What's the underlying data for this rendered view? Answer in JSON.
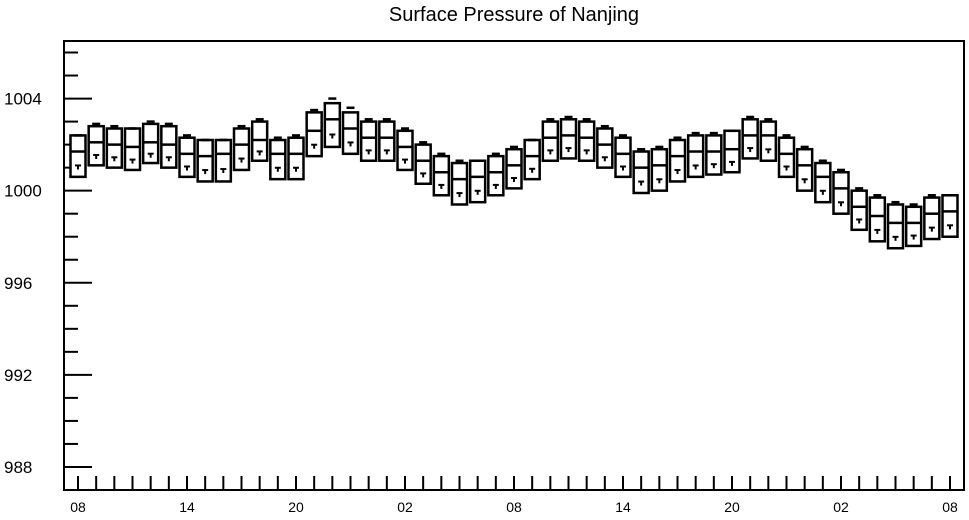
{
  "chart_data": {
    "type": "box",
    "title": "Surface Pressure of Nanjing",
    "xlabel": "",
    "ylabel": "",
    "ylim": [
      987.0,
      1006.5
    ],
    "y_ticks": [
      988,
      992,
      996,
      1000,
      1004
    ],
    "x_tick_labels": [
      "08",
      "14",
      "20",
      "02",
      "08",
      "14",
      "20",
      "02",
      "08"
    ],
    "x_tick_positions": [
      0,
      6,
      12,
      18,
      24,
      30,
      36,
      42,
      48
    ],
    "grid": false,
    "boxes": [
      {
        "x": 0,
        "low": 1000.6,
        "q1": 1000.6,
        "median": 1001.7,
        "q3": 1002.4,
        "high": 1002.4
      },
      {
        "x": 1,
        "low": 1001.1,
        "q1": 1001.1,
        "median": 1002.1,
        "q3": 1002.8,
        "high": 1002.9
      },
      {
        "x": 2,
        "low": 1001.0,
        "q1": 1001.0,
        "median": 1002.0,
        "q3": 1002.7,
        "high": 1002.8
      },
      {
        "x": 3,
        "low": 1000.9,
        "q1": 1000.9,
        "median": 1001.9,
        "q3": 1002.7,
        "high": 1002.7
      },
      {
        "x": 4,
        "low": 1001.2,
        "q1": 1001.2,
        "median": 1002.1,
        "q3": 1002.9,
        "high": 1003.0
      },
      {
        "x": 5,
        "low": 1001.0,
        "q1": 1001.0,
        "median": 1002.0,
        "q3": 1002.8,
        "high": 1002.9
      },
      {
        "x": 6,
        "low": 1000.6,
        "q1": 1000.6,
        "median": 1001.6,
        "q3": 1002.3,
        "high": 1002.4
      },
      {
        "x": 7,
        "low": 1000.4,
        "q1": 1000.4,
        "median": 1001.5,
        "q3": 1002.2,
        "high": 1002.2
      },
      {
        "x": 8,
        "low": 1000.4,
        "q1": 1000.4,
        "median": 1001.6,
        "q3": 1002.2,
        "high": 1002.2
      },
      {
        "x": 9,
        "low": 1000.9,
        "q1": 1000.9,
        "median": 1002.0,
        "q3": 1002.7,
        "high": 1002.8
      },
      {
        "x": 10,
        "low": 1001.3,
        "q1": 1001.3,
        "median": 1002.2,
        "q3": 1003.0,
        "high": 1003.1
      },
      {
        "x": 11,
        "low": 1000.5,
        "q1": 1000.5,
        "median": 1001.6,
        "q3": 1002.2,
        "high": 1002.3
      },
      {
        "x": 12,
        "low": 1000.5,
        "q1": 1000.5,
        "median": 1001.6,
        "q3": 1002.3,
        "high": 1002.4
      },
      {
        "x": 13,
        "low": 1001.5,
        "q1": 1001.5,
        "median": 1002.6,
        "q3": 1003.4,
        "high": 1003.5
      },
      {
        "x": 14,
        "low": 1001.9,
        "q1": 1001.9,
        "median": 1003.1,
        "q3": 1003.8,
        "high": 1004.0
      },
      {
        "x": 15,
        "low": 1001.6,
        "q1": 1001.6,
        "median": 1002.7,
        "q3": 1003.4,
        "high": 1003.6
      },
      {
        "x": 16,
        "low": 1001.3,
        "q1": 1001.3,
        "median": 1002.3,
        "q3": 1003.0,
        "high": 1003.1
      },
      {
        "x": 17,
        "low": 1001.3,
        "q1": 1001.3,
        "median": 1002.3,
        "q3": 1003.0,
        "high": 1003.1
      },
      {
        "x": 18,
        "low": 1000.9,
        "q1": 1000.9,
        "median": 1001.9,
        "q3": 1002.6,
        "high": 1002.7
      },
      {
        "x": 19,
        "low": 1000.3,
        "q1": 1000.3,
        "median": 1001.3,
        "q3": 1002.0,
        "high": 1002.1
      },
      {
        "x": 20,
        "low": 999.8,
        "q1": 999.8,
        "median": 1000.8,
        "q3": 1001.5,
        "high": 1001.6
      },
      {
        "x": 21,
        "low": 999.4,
        "q1": 999.4,
        "median": 1000.5,
        "q3": 1001.2,
        "high": 1001.3
      },
      {
        "x": 22,
        "low": 999.5,
        "q1": 999.5,
        "median": 1000.6,
        "q3": 1001.3,
        "high": 1001.3
      },
      {
        "x": 23,
        "low": 999.8,
        "q1": 999.8,
        "median": 1000.8,
        "q3": 1001.5,
        "high": 1001.6
      },
      {
        "x": 24,
        "low": 1000.1,
        "q1": 1000.1,
        "median": 1001.1,
        "q3": 1001.8,
        "high": 1001.9
      },
      {
        "x": 25,
        "low": 1000.5,
        "q1": 1000.5,
        "median": 1001.5,
        "q3": 1002.2,
        "high": 1002.2
      },
      {
        "x": 26,
        "low": 1001.3,
        "q1": 1001.3,
        "median": 1002.3,
        "q3": 1003.0,
        "high": 1003.1
      },
      {
        "x": 27,
        "low": 1001.4,
        "q1": 1001.4,
        "median": 1002.4,
        "q3": 1003.1,
        "high": 1003.2
      },
      {
        "x": 28,
        "low": 1001.3,
        "q1": 1001.3,
        "median": 1002.3,
        "q3": 1003.0,
        "high": 1003.1
      },
      {
        "x": 29,
        "low": 1001.0,
        "q1": 1001.0,
        "median": 1002.0,
        "q3": 1002.7,
        "high": 1002.8
      },
      {
        "x": 30,
        "low": 1000.6,
        "q1": 1000.6,
        "median": 1001.6,
        "q3": 1002.3,
        "high": 1002.4
      },
      {
        "x": 31,
        "low": 999.9,
        "q1": 999.9,
        "median": 1001.0,
        "q3": 1001.7,
        "high": 1001.8
      },
      {
        "x": 32,
        "low": 1000.0,
        "q1": 1000.0,
        "median": 1001.1,
        "q3": 1001.8,
        "high": 1001.9
      },
      {
        "x": 33,
        "low": 1000.4,
        "q1": 1000.4,
        "median": 1001.5,
        "q3": 1002.2,
        "high": 1002.3
      },
      {
        "x": 34,
        "low": 1000.6,
        "q1": 1000.6,
        "median": 1001.7,
        "q3": 1002.4,
        "high": 1002.5
      },
      {
        "x": 35,
        "low": 1000.7,
        "q1": 1000.7,
        "median": 1001.7,
        "q3": 1002.4,
        "high": 1002.5
      },
      {
        "x": 36,
        "low": 1000.8,
        "q1": 1000.8,
        "median": 1001.8,
        "q3": 1002.6,
        "high": 1002.6
      },
      {
        "x": 37,
        "low": 1001.4,
        "q1": 1001.4,
        "median": 1002.4,
        "q3": 1003.1,
        "high": 1003.2
      },
      {
        "x": 38,
        "low": 1001.3,
        "q1": 1001.3,
        "median": 1002.4,
        "q3": 1003.0,
        "high": 1003.1
      },
      {
        "x": 39,
        "low": 1000.6,
        "q1": 1000.6,
        "median": 1001.6,
        "q3": 1002.3,
        "high": 1002.4
      },
      {
        "x": 40,
        "low": 1000.0,
        "q1": 1000.0,
        "median": 1001.1,
        "q3": 1001.8,
        "high": 1001.9
      },
      {
        "x": 41,
        "low": 999.5,
        "q1": 999.5,
        "median": 1000.6,
        "q3": 1001.2,
        "high": 1001.3
      },
      {
        "x": 42,
        "low": 999.0,
        "q1": 999.0,
        "median": 1000.1,
        "q3": 1000.8,
        "high": 1000.9
      },
      {
        "x": 43,
        "low": 998.3,
        "q1": 998.3,
        "median": 999.3,
        "q3": 1000.0,
        "high": 1000.1
      },
      {
        "x": 44,
        "low": 997.8,
        "q1": 997.8,
        "median": 998.9,
        "q3": 999.7,
        "high": 999.8
      },
      {
        "x": 45,
        "low": 997.5,
        "q1": 997.5,
        "median": 998.6,
        "q3": 999.4,
        "high": 999.5
      },
      {
        "x": 46,
        "low": 997.6,
        "q1": 997.6,
        "median": 998.6,
        "q3": 999.3,
        "high": 999.4
      },
      {
        "x": 47,
        "low": 997.9,
        "q1": 997.9,
        "median": 999.0,
        "q3": 999.7,
        "high": 999.8
      },
      {
        "x": 48,
        "low": 998.0,
        "q1": 998.0,
        "median": 999.1,
        "q3": 999.8,
        "high": 999.8
      }
    ]
  }
}
